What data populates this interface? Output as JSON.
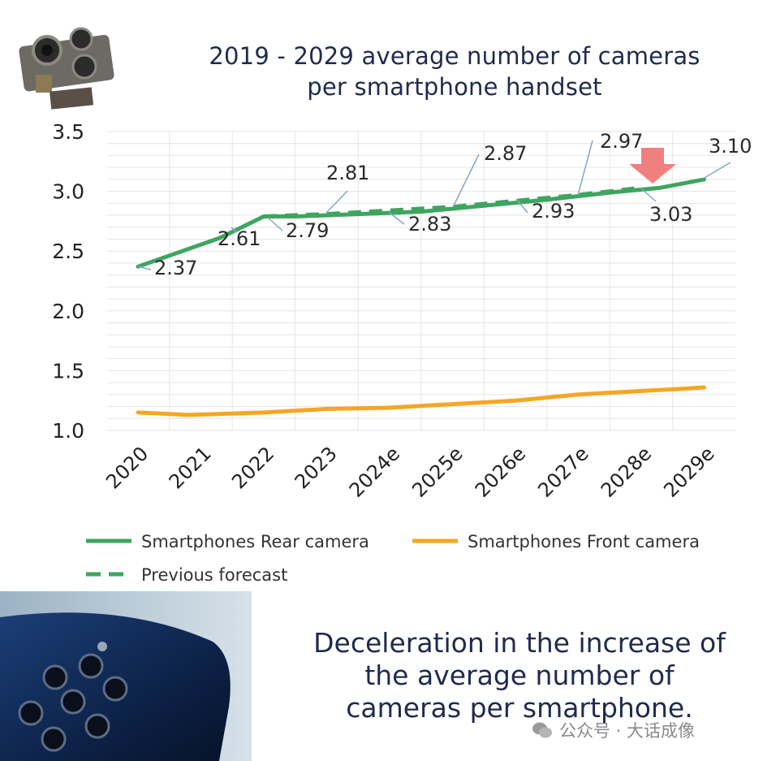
{
  "title": {
    "line1": "2019 - 2029 average number of cameras",
    "line2": "per smartphone handset"
  },
  "caption": {
    "line1": "Deceleration in the increase of",
    "line2": "the average number of",
    "line3": "cameras per smartphone."
  },
  "watermark": {
    "text": "公众号 · 大话成像"
  },
  "colors": {
    "rear": "#3ea55f",
    "front": "#f5a623",
    "previous": "#3ea55f",
    "arrow": "#f08080",
    "grid": "#e6e6e6",
    "text": "#1f2b4d"
  },
  "chart_data": {
    "type": "line",
    "title": "2019 - 2029 average number of cameras per smartphone handset",
    "categories": [
      "2020",
      "2021",
      "2022",
      "2023",
      "2024e",
      "2025e",
      "2026e",
      "2027e",
      "2028e",
      "2029e"
    ],
    "y_ticks": [
      "1.0",
      "1.5",
      "2.0",
      "2.5",
      "3.0",
      "3.5"
    ],
    "ylim": [
      1.0,
      3.5
    ],
    "grid": true,
    "legend_position": "bottom",
    "series": [
      {
        "name": "Smartphones Rear camera",
        "style": "solid",
        "values": [
          2.37,
          2.61,
          2.79,
          2.79,
          2.81,
          2.83,
          2.88,
          2.93,
          2.99,
          3.03,
          3.1
        ],
        "x": [
          0,
          1.3,
          2,
          2.5,
          3.5,
          4.5,
          5.5,
          6.5,
          7.5,
          8.3,
          9
        ]
      },
      {
        "name": "Smartphones Front camera",
        "style": "solid",
        "values": [
          1.15,
          1.13,
          1.15,
          1.18,
          1.19,
          1.22,
          1.25,
          1.3,
          1.33,
          1.35,
          1.36
        ],
        "x": [
          0,
          0.8,
          2,
          3,
          4,
          5,
          6,
          7,
          8,
          8.7,
          9
        ]
      },
      {
        "name": "Previous forecast",
        "style": "dashed",
        "values": [
          2.79,
          2.81,
          2.87,
          2.97,
          3.03
        ],
        "x": [
          2,
          3,
          5,
          7,
          8
        ]
      }
    ],
    "annotations": [
      {
        "label": "2.37"
      },
      {
        "label": "2.61"
      },
      {
        "label": "2.79"
      },
      {
        "label": "2.81"
      },
      {
        "label": "2.83"
      },
      {
        "label": "2.87"
      },
      {
        "label": "2.93"
      },
      {
        "label": "2.97"
      },
      {
        "label": "3.03"
      },
      {
        "label": "3.10"
      }
    ],
    "legend": [
      {
        "label": "Smartphones Rear camera",
        "style": "solid",
        "color_key": "rear"
      },
      {
        "label": "Smartphones Front camera",
        "style": "solid",
        "color_key": "front"
      },
      {
        "label": "Previous forecast",
        "style": "dashed",
        "color_key": "previous"
      }
    ]
  }
}
